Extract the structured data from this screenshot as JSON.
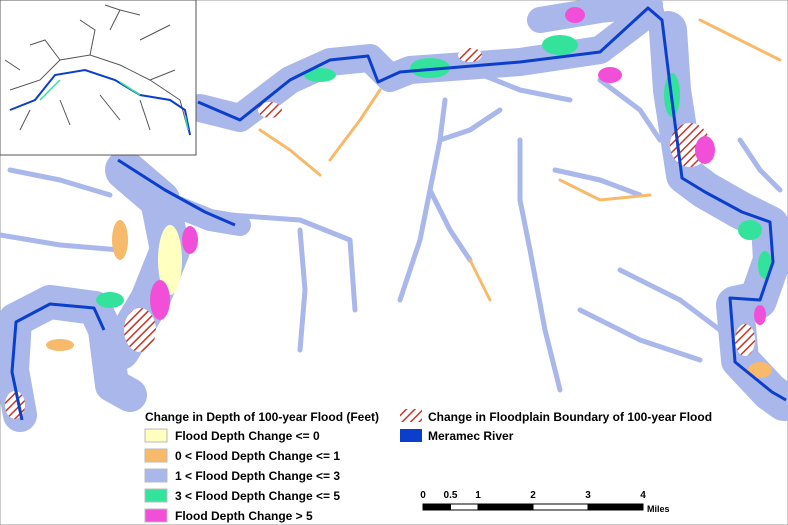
{
  "legend": {
    "title": "Change in Depth of 100-year Flood (Feet)",
    "items": [
      {
        "label": "Flood Depth Change <= 0",
        "color": "#ffffc0"
      },
      {
        "label": "0 < Flood Depth Change <= 1",
        "color": "#f7b96a"
      },
      {
        "label": "1 < Flood Depth Change <= 3",
        "color": "#a9b7ea"
      },
      {
        "label": "3 < Flood Depth Change <= 5",
        "color": "#34e39b"
      },
      {
        "label": "Flood Depth Change > 5",
        "color": "#f24fd8"
      }
    ],
    "boundary": {
      "label": "Change in Floodplain Boundary of 100-year Flood"
    },
    "river": {
      "label": "Meramec River",
      "color": "#0b3fcb"
    }
  },
  "scale_bar": {
    "ticks": [
      0,
      0.5,
      1,
      2,
      3,
      4
    ],
    "unit": "Miles"
  }
}
